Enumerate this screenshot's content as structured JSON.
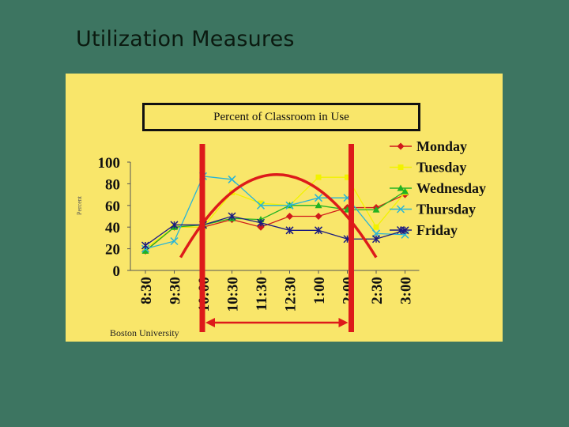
{
  "slide": {
    "title": "Utilization Measures"
  },
  "panel": {
    "source_label": "Boston University",
    "ylabel_small": "Percent"
  },
  "chart_data": {
    "type": "line",
    "title": "Percent of Classroom in Use",
    "categories": [
      "8:30",
      "9:30",
      "10:00",
      "10:30",
      "11:30",
      "12:30",
      "1:00",
      "2:00",
      "2:30",
      "3:00"
    ],
    "ylim": [
      0,
      100
    ],
    "yticks": [
      0,
      20,
      40,
      60,
      80,
      100
    ],
    "grid": "none",
    "legend": "top-right",
    "series": [
      {
        "name": "Monday",
        "color": "#d01a1a",
        "marker": "diamond",
        "values": [
          18,
          40,
          40,
          47,
          40,
          50,
          50,
          58,
          58,
          70
        ]
      },
      {
        "name": "Tuesday",
        "color": "#f2f200",
        "marker": "square",
        "values": [
          20,
          40,
          40,
          72,
          62,
          60,
          86,
          86,
          40,
          72
        ]
      },
      {
        "name": "Wednesday",
        "color": "#22b222",
        "marker": "triangle",
        "values": [
          18,
          40,
          42,
          48,
          47,
          60,
          60,
          56,
          56,
          73
        ]
      },
      {
        "name": "Thursday",
        "color": "#28b4d8",
        "marker": "x",
        "values": [
          20,
          27,
          87,
          84,
          60,
          60,
          67,
          67,
          34,
          33
        ]
      },
      {
        "name": "Friday",
        "color": "#1a1a80",
        "marker": "star",
        "values": [
          23,
          42,
          42,
          50,
          44,
          37,
          37,
          29,
          29,
          37
        ]
      }
    ],
    "annotations": {
      "peak_window_start": "10:00",
      "peak_window_end": "2:00",
      "arc_color": "#dd1a1a"
    }
  }
}
